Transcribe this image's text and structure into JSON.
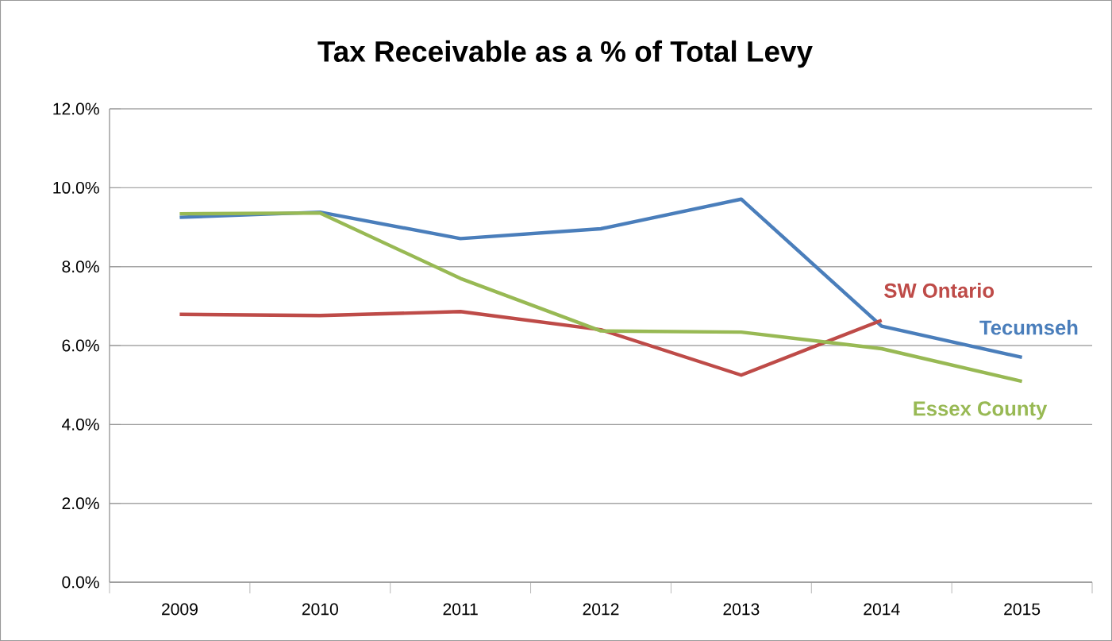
{
  "chart_data": {
    "type": "line",
    "title": "Tax Receivable as a % of Total Levy",
    "categories": [
      "2009",
      "2010",
      "2011",
      "2012",
      "2013",
      "2014",
      "2015"
    ],
    "series": [
      {
        "name": "Tecumseh",
        "color": "#4a7ebb",
        "values": [
          9.25,
          9.38,
          8.71,
          8.96,
          9.71,
          6.49,
          5.7
        ]
      },
      {
        "name": "SW Ontario",
        "color": "#be4b48",
        "values": [
          6.79,
          6.76,
          6.86,
          6.4,
          5.25,
          6.64,
          null
        ]
      },
      {
        "name": "Essex County",
        "color": "#98b954",
        "values": [
          9.34,
          9.36,
          7.7,
          6.37,
          6.34,
          5.92,
          5.09
        ]
      }
    ],
    "ylim": [
      0,
      12
    ],
    "yticks": [
      {
        "value": 0,
        "label": "0.0%"
      },
      {
        "value": 2,
        "label": "2.0%"
      },
      {
        "value": 4,
        "label": "4.0%"
      },
      {
        "value": 6,
        "label": "6.0%"
      },
      {
        "value": 8,
        "label": "8.0%"
      },
      {
        "value": 10,
        "label": "10.0%"
      },
      {
        "value": 12,
        "label": "12.0%"
      }
    ],
    "grid": "y",
    "legend": false,
    "marker": "none",
    "line_style": "solid"
  }
}
